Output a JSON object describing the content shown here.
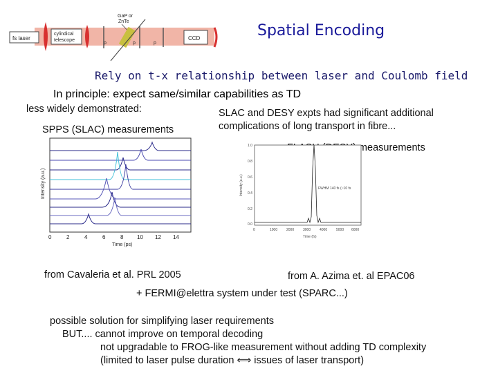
{
  "diagram": {
    "fs_laser": "fs laser",
    "telescope": "cylindical\ntelescope",
    "crystal": "GaP or\nZnTe",
    "ccd": "CCD",
    "pol_labels": [
      "p",
      "p",
      "p"
    ]
  },
  "title": "Spatial Encoding",
  "subtitle": "Rely on t-x relationship between laser and Coulomb field",
  "principle": "In principle: expect same/similar capabilities as TD",
  "less_widely": "less widely demonstrated:",
  "slac_desy_line1": "SLAC and DESY expts had significant additional",
  "slac_desy_line2": "complications of long transport in fibre...",
  "spps_label": "SPPS (SLAC) measurements",
  "flash_label": "FLASH (DESY) measurements",
  "slac_plot": {
    "ylabel": "Intensity (a.u.)",
    "xlabel": "Time (ps)",
    "xticks": [
      "0",
      "2",
      "4",
      "6",
      "8",
      "10",
      "12",
      "14"
    ]
  },
  "desy_plot": {
    "ylabel": "Intensity (a.u.)",
    "xlabel": "Time (fs)",
    "annotation": "FWHM 140 fs (~10 fs",
    "yticks": [
      "1.0",
      "0.8",
      "0.6",
      "0.4",
      "0.2",
      "0.0"
    ],
    "xticks": [
      "0",
      "1000",
      "2000",
      "3000",
      "4000",
      "5000",
      "6000"
    ]
  },
  "cite_slac": "from Cavaleria et al. PRL 2005",
  "cite_desy": "from A. Azima et. al EPAC06",
  "fermi": "+ FERMI@elettra system under test (SPARC...)",
  "solution": {
    "line1": "possible solution for simplifying laser requirements",
    "line2": "BUT.... cannot improve on temporal decoding",
    "line3": "not upgradable to FROG-like measurement without adding TD complexity",
    "line4": "(limited to laser pulse duration ⟺ issues of laser transport)"
  },
  "colors": {
    "title": "#1a1a9a",
    "beam": "#e8a090",
    "trace_dark": "#2a2a8a",
    "trace_cyan": "#40c0d8"
  }
}
